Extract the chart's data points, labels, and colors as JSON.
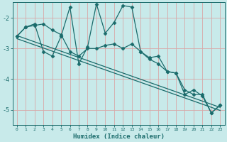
{
  "xlabel": "Humidex (Indice chaleur)",
  "bg_color": "#c8eaea",
  "grid_color": "#d8a8a8",
  "line_color": "#1a6b6b",
  "marker": "D",
  "markersize": 2.5,
  "linewidth": 0.9,
  "series1": [
    [
      0,
      -2.6
    ],
    [
      1,
      -2.3
    ],
    [
      2,
      -2.25
    ],
    [
      3,
      -2.2
    ],
    [
      4,
      -2.4
    ],
    [
      5,
      -2.55
    ],
    [
      6,
      -3.1
    ],
    [
      7,
      -3.25
    ],
    [
      8,
      -3.0
    ],
    [
      9,
      -3.0
    ],
    [
      10,
      -2.9
    ],
    [
      11,
      -2.85
    ],
    [
      12,
      -3.0
    ],
    [
      13,
      -2.85
    ],
    [
      14,
      -3.1
    ],
    [
      15,
      -3.35
    ],
    [
      16,
      -3.5
    ],
    [
      17,
      -3.75
    ],
    [
      18,
      -3.8
    ],
    [
      19,
      -4.35
    ],
    [
      20,
      -4.5
    ],
    [
      21,
      -4.5
    ],
    [
      22,
      -5.1
    ],
    [
      23,
      -4.85
    ]
  ],
  "series2": [
    [
      0,
      -2.6
    ],
    [
      1,
      -2.3
    ],
    [
      2,
      -2.2
    ],
    [
      3,
      -3.1
    ],
    [
      4,
      -3.25
    ],
    [
      5,
      -2.6
    ],
    [
      6,
      -1.65
    ],
    [
      7,
      -3.5
    ],
    [
      8,
      -2.95
    ],
    [
      9,
      -1.55
    ],
    [
      10,
      -2.5
    ],
    [
      11,
      -2.15
    ],
    [
      12,
      -1.6
    ],
    [
      13,
      -1.65
    ],
    [
      14,
      -3.1
    ],
    [
      15,
      -3.3
    ],
    [
      16,
      -3.25
    ],
    [
      17,
      -3.75
    ],
    [
      18,
      -3.8
    ],
    [
      19,
      -4.5
    ],
    [
      20,
      -4.35
    ],
    [
      21,
      -4.55
    ],
    [
      22,
      -5.1
    ],
    [
      23,
      -4.85
    ]
  ],
  "trend_line1": [
    [
      0,
      -2.58
    ],
    [
      23,
      -4.92
    ]
  ],
  "trend_line2": [
    [
      0,
      -2.68
    ],
    [
      23,
      -5.02
    ]
  ],
  "xlim": [
    -0.5,
    23.5
  ],
  "ylim": [
    -5.5,
    -1.5
  ],
  "yticks": [
    -5,
    -4,
    -3,
    -2
  ],
  "xticks": [
    0,
    1,
    2,
    3,
    4,
    5,
    6,
    7,
    8,
    9,
    10,
    11,
    12,
    13,
    14,
    15,
    16,
    17,
    18,
    19,
    20,
    21,
    22,
    23
  ]
}
